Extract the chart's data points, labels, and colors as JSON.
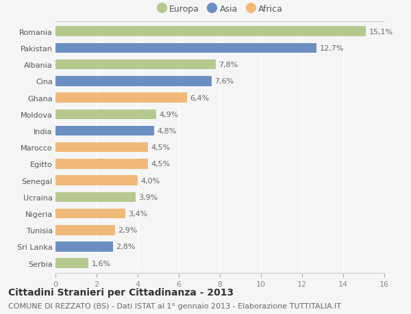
{
  "categories": [
    "Romania",
    "Pakistan",
    "Albania",
    "Cina",
    "Ghana",
    "Moldova",
    "India",
    "Marocco",
    "Egitto",
    "Senegal",
    "Ucraina",
    "Nigeria",
    "Tunisia",
    "Sri Lanka",
    "Serbia"
  ],
  "values": [
    15.1,
    12.7,
    7.8,
    7.6,
    6.4,
    4.9,
    4.8,
    4.5,
    4.5,
    4.0,
    3.9,
    3.4,
    2.9,
    2.8,
    1.6
  ],
  "labels": [
    "15,1%",
    "12,7%",
    "7,8%",
    "7,6%",
    "6,4%",
    "4,9%",
    "4,8%",
    "4,5%",
    "4,5%",
    "4,0%",
    "3,9%",
    "3,4%",
    "2,9%",
    "2,8%",
    "1,6%"
  ],
  "colors": [
    "#b5c98e",
    "#6b8fc2",
    "#b5c98e",
    "#6b8fc2",
    "#f0b97a",
    "#b5c98e",
    "#6b8fc2",
    "#f0b97a",
    "#f0b97a",
    "#f0b97a",
    "#b5c98e",
    "#f0b97a",
    "#f0b97a",
    "#6b8fc2",
    "#b5c98e"
  ],
  "legend_labels": [
    "Europa",
    "Asia",
    "Africa"
  ],
  "legend_colors": [
    "#b5c98e",
    "#6b8fc2",
    "#f0b97a"
  ],
  "xlim": [
    0,
    16
  ],
  "xticks": [
    0,
    2,
    4,
    6,
    8,
    10,
    12,
    14,
    16
  ],
  "title": "Cittadini Stranieri per Cittadinanza - 2013",
  "subtitle": "COMUNE DI REZZATO (BS) - Dati ISTAT al 1° gennaio 2013 - Elaborazione TUTTITALIA.IT",
  "bg_color": "#f5f5f5",
  "bar_height": 0.6,
  "title_fontsize": 10,
  "subtitle_fontsize": 8,
  "label_fontsize": 8,
  "tick_fontsize": 8,
  "legend_fontsize": 9
}
